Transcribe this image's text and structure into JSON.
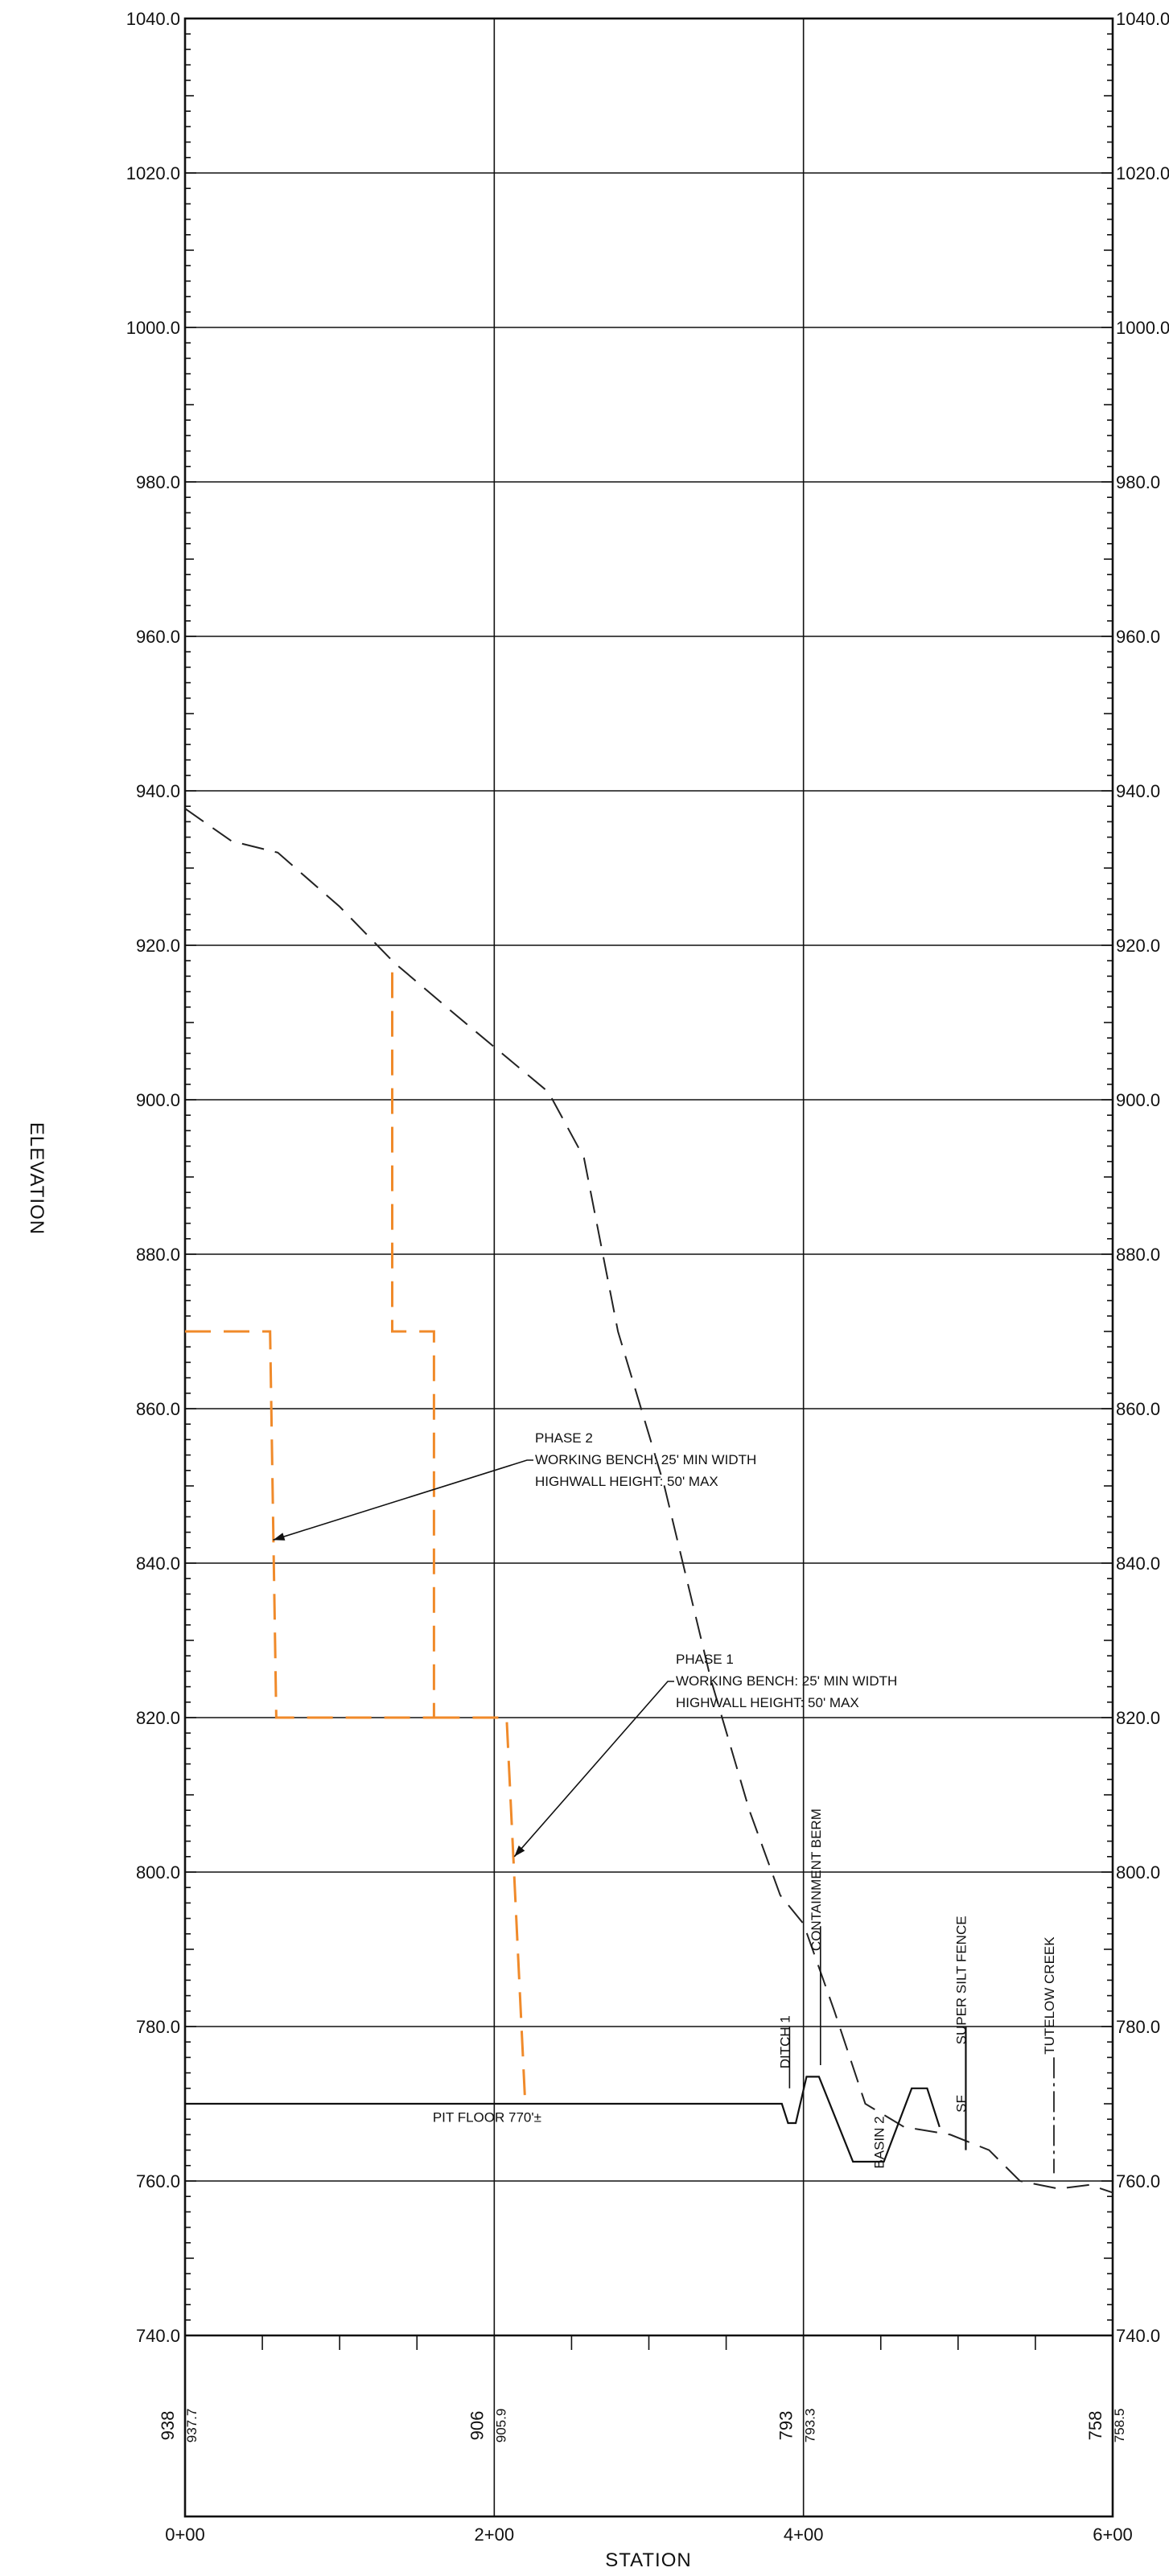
{
  "axis_titles": {
    "x": "STATION",
    "y": "ELEVATION"
  },
  "chart_data": {
    "type": "line",
    "x_unit": "station (ft)",
    "xlim": [
      0,
      600
    ],
    "ylim": [
      740,
      1040
    ],
    "y_ticks": [
      "740.0",
      "760.0",
      "780.0",
      "800.0",
      "820.0",
      "840.0",
      "860.0",
      "880.0",
      "900.0",
      "920.0",
      "940.0",
      "960.0",
      "980.0",
      "1000.0",
      "1020.0",
      "1040.0"
    ],
    "x_ticks": [
      "0+00",
      "2+00",
      "4+00",
      "6+00"
    ],
    "elevation_labels": [
      {
        "station": 0,
        "existing": "938",
        "proposed": "937.7"
      },
      {
        "station": 200,
        "existing": "906",
        "proposed": "905.9"
      },
      {
        "station": 400,
        "existing": "793",
        "proposed": "793.3"
      },
      {
        "station": 600,
        "existing": "758",
        "proposed": "758.5"
      }
    ],
    "series": [
      {
        "key": "existing_ground",
        "style": "dashed",
        "color": "#222222",
        "x": [
          0,
          30,
          60,
          100,
          135,
          175,
          205,
          235,
          258,
          280,
          310,
          340,
          365,
          385,
          400,
          420,
          440,
          465,
          495,
          520,
          540,
          565,
          585,
          600
        ],
        "y": [
          937.7,
          933.5,
          932,
          925,
          917.8,
          911,
          906,
          901,
          892.5,
          870,
          850,
          825,
          808,
          797,
          793.3,
          782,
          770,
          767,
          766,
          764,
          760,
          759,
          759.5,
          758.5
        ]
      },
      {
        "key": "phase_2_profile",
        "style": "dashed",
        "color": "#f08a2a",
        "x": [
          0,
          55,
          59,
          161,
          161,
          134,
          134,
          0
        ],
        "y": [
          870,
          870,
          820,
          820,
          870,
          870,
          918,
          918
        ],
        "path": [
          [
            0,
            870
          ],
          [
            55,
            870
          ],
          [
            59,
            820
          ],
          [
            161,
            820
          ],
          [
            161,
            870
          ],
          [
            134,
            870
          ],
          [
            134,
            918
          ]
        ]
      },
      {
        "key": "phase_1_profile",
        "style": "dashed",
        "color": "#f08a2a",
        "path": [
          [
            161,
            820
          ],
          [
            208,
            820
          ],
          [
            220,
            770
          ]
        ]
      },
      {
        "key": "pit_floor_and_ditches",
        "style": "solid",
        "color": "#111111",
        "path": [
          [
            0,
            770
          ],
          [
            386,
            770
          ],
          [
            390,
            767.5
          ],
          [
            395,
            767.5
          ],
          [
            402,
            773.5
          ],
          [
            410,
            773.5
          ],
          [
            432,
            762.5
          ],
          [
            452,
            762.5
          ],
          [
            470,
            772
          ],
          [
            480,
            772
          ],
          [
            488,
            767
          ]
        ]
      }
    ],
    "annotations": [
      {
        "text": "PIT FLOOR 770'±",
        "station": 155,
        "elevation": 768.5
      },
      {
        "text": "DITCH 1",
        "station": 391,
        "elevation": 778,
        "rotated": true
      },
      {
        "text": "CONTAINMENT BERM",
        "station": 411,
        "elevation": 799,
        "rotated": true
      },
      {
        "text": "BASIN 2",
        "station": 452,
        "elevation": 765,
        "rotated": true
      },
      {
        "text": "SF",
        "station": 505,
        "elevation": 770,
        "rotated": true
      },
      {
        "text": "SUPER SILT FENCE",
        "station": 505,
        "elevation": 786,
        "rotated": true
      },
      {
        "text": "TUTELOW CREEK",
        "station": 562,
        "elevation": 784,
        "rotated": true
      }
    ],
    "callouts": [
      {
        "lines": [
          "PHASE 2",
          "WORKING BENCH: 25' MIN WIDTH",
          "HIGHWALL HEIGHT: 50' MAX"
        ],
        "points_to": [
          57,
          843
        ]
      },
      {
        "lines": [
          "PHASE 1",
          "WORKING BENCH: 25' MIN WIDTH",
          "HIGHWALL HEIGHT: 50' MAX"
        ],
        "points_to": [
          213,
          802
        ]
      }
    ]
  }
}
